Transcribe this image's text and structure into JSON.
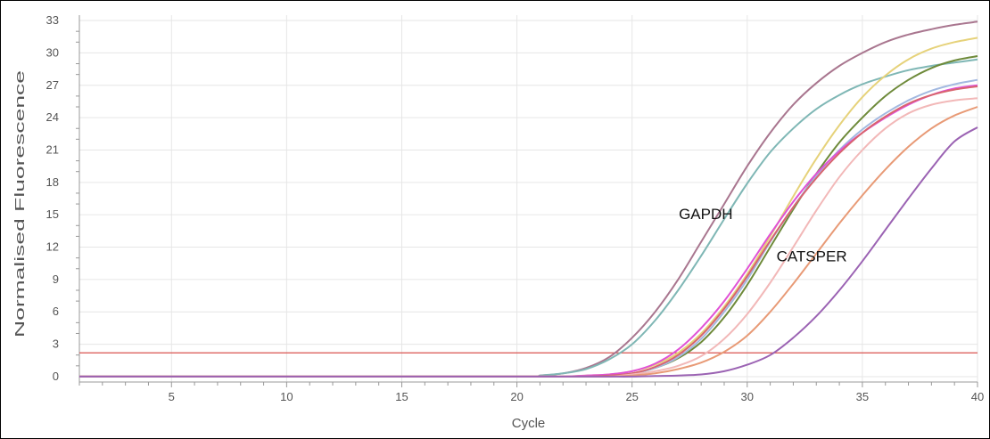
{
  "chart_data": {
    "type": "line",
    "title": "",
    "xlabel": "Cycle",
    "ylabel": "Normalised Fluorescence",
    "xlim": [
      1,
      40
    ],
    "ylim": [
      -0.5,
      33.5
    ],
    "xticks": [
      5,
      10,
      15,
      20,
      25,
      30,
      35,
      40
    ],
    "yticks": [
      0,
      3,
      6,
      9,
      12,
      15,
      18,
      21,
      24,
      27,
      30,
      33
    ],
    "grid": true,
    "legend": "none",
    "threshold": {
      "value": 2.2,
      "color": "#d9534f"
    },
    "annotations": [
      {
        "text": "GAPDH",
        "x": 28.2,
        "y": 14.6
      },
      {
        "text": "CATSPER",
        "x": 32.8,
        "y": 10.7
      }
    ],
    "x": [
      1,
      20,
      21,
      22,
      23,
      24,
      25,
      26,
      27,
      28,
      29,
      30,
      31,
      32,
      33,
      34,
      35,
      36,
      37,
      38,
      39,
      40
    ],
    "series": [
      {
        "color": "#a9768f",
        "values": [
          0,
          0,
          0.1,
          0.3,
          0.8,
          1.8,
          3.6,
          6.0,
          9.0,
          12.5,
          16.0,
          19.5,
          22.6,
          25.2,
          27.2,
          28.8,
          30.0,
          31.0,
          31.7,
          32.2,
          32.6,
          32.9
        ]
      },
      {
        "color": "#7fb7b5",
        "values": [
          0,
          0,
          0.1,
          0.3,
          0.7,
          1.6,
          3.0,
          5.2,
          8.0,
          11.2,
          14.6,
          17.9,
          20.8,
          23.0,
          24.8,
          26.1,
          27.1,
          27.8,
          28.4,
          28.8,
          29.1,
          29.4
        ]
      },
      {
        "color": "#e6d27a",
        "values": [
          0,
          0,
          0,
          0,
          0.1,
          0.2,
          0.5,
          1.1,
          2.2,
          4.0,
          6.5,
          9.5,
          13.0,
          16.7,
          20.2,
          23.3,
          25.9,
          27.9,
          29.4,
          30.4,
          31.0,
          31.4
        ]
      },
      {
        "color": "#6e8a3a",
        "values": [
          0,
          0,
          0,
          0,
          0,
          0.1,
          0.3,
          0.8,
          1.7,
          3.2,
          5.5,
          8.5,
          12.0,
          15.5,
          18.8,
          21.7,
          24.0,
          26.0,
          27.5,
          28.6,
          29.3,
          29.7
        ]
      },
      {
        "color": "#a3b9e0",
        "values": [
          0,
          0,
          0,
          0,
          0,
          0.1,
          0.3,
          0.8,
          1.8,
          3.5,
          6.0,
          9.0,
          12.5,
          15.7,
          18.6,
          21.0,
          22.9,
          24.4,
          25.6,
          26.5,
          27.1,
          27.5
        ]
      },
      {
        "color": "#e052d6",
        "values": [
          0,
          0,
          0,
          0,
          0.1,
          0.2,
          0.5,
          1.2,
          2.5,
          4.5,
          7.0,
          10.0,
          13.2,
          16.2,
          18.8,
          20.9,
          22.6,
          24.0,
          25.2,
          26.1,
          26.7,
          27.0
        ]
      },
      {
        "color": "#d8646e",
        "values": [
          0,
          0,
          0,
          0,
          0,
          0.1,
          0.3,
          0.9,
          2.0,
          3.8,
          6.3,
          9.3,
          12.6,
          15.7,
          18.4,
          20.7,
          22.6,
          24.1,
          25.3,
          26.1,
          26.6,
          26.9
        ]
      },
      {
        "color": "#f2b8b8",
        "values": [
          0,
          0,
          0,
          0,
          0,
          0,
          0.2,
          0.5,
          1.0,
          1.9,
          3.5,
          5.8,
          8.7,
          12.0,
          15.4,
          18.5,
          21.0,
          23.0,
          24.4,
          25.2,
          25.6,
          25.8
        ]
      },
      {
        "color": "#e89a76",
        "values": [
          0,
          0,
          0,
          0,
          0,
          0,
          0.1,
          0.3,
          0.7,
          1.3,
          2.3,
          3.8,
          6.0,
          8.6,
          11.4,
          14.2,
          16.8,
          19.2,
          21.3,
          23.0,
          24.2,
          25.0
        ]
      },
      {
        "color": "#9b63b3",
        "values": [
          0,
          0,
          0,
          0,
          0,
          0,
          0,
          0.05,
          0.1,
          0.2,
          0.5,
          1.1,
          2.0,
          3.6,
          5.6,
          8.0,
          10.7,
          13.6,
          16.5,
          19.3,
          21.8,
          23.1
        ]
      }
    ]
  }
}
